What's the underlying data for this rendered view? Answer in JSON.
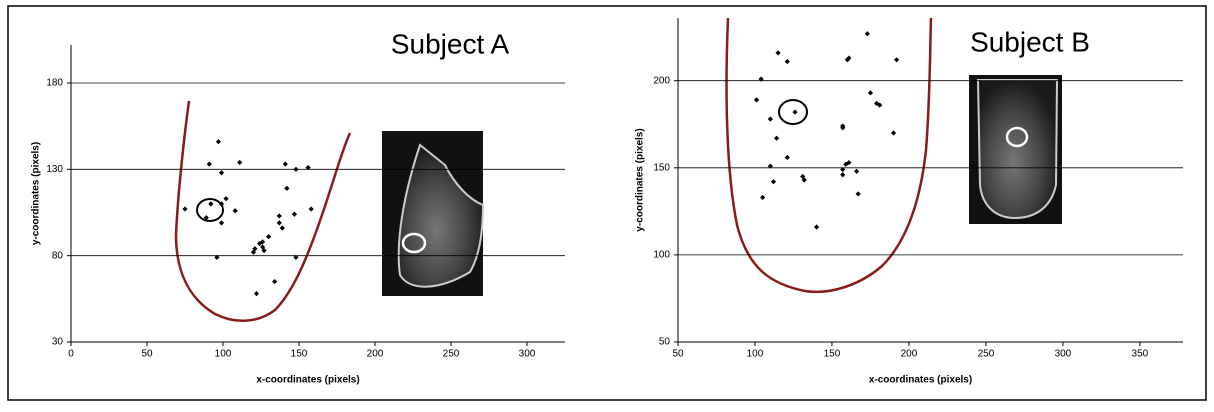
{
  "chart_data": [
    {
      "type": "scatter",
      "title": "Subject A",
      "x_label": "x-coordinates (pixels)",
      "y_label": "y-coordinates (pixels)",
      "x": [
        97,
        91,
        111,
        141,
        156,
        148,
        99,
        142,
        75,
        92,
        99,
        102,
        108,
        158,
        137,
        137,
        147,
        89,
        99,
        139,
        130,
        126,
        124,
        121,
        127,
        126,
        120,
        96,
        148,
        134,
        122
      ],
      "values": [
        146,
        133,
        134,
        133,
        131,
        130,
        128,
        119,
        107,
        110,
        110,
        113,
        106,
        107,
        103,
        99,
        104,
        102,
        99,
        96,
        91,
        88,
        87,
        84,
        83,
        85,
        82,
        79,
        79,
        65,
        58
      ],
      "color": "#000000",
      "xlim": [
        0,
        325
      ],
      "ylim": [
        30,
        202
      ],
      "xticks": [
        0,
        50,
        100,
        150,
        200,
        250,
        300
      ],
      "yticks": [
        30,
        80,
        130,
        180
      ],
      "grid": true
    },
    {
      "type": "scatter",
      "title": "Subject B",
      "x_label": "x-coordinates (pixels)",
      "y_label": "y-coordinates (pixels)",
      "x": [
        173,
        115,
        121,
        160,
        161,
        192,
        104,
        101,
        175,
        179,
        181,
        110,
        126,
        114,
        157,
        157,
        190,
        121,
        110,
        159,
        161,
        157,
        166,
        131,
        132,
        112,
        157,
        167,
        105,
        140
      ],
      "values": [
        227,
        216,
        211,
        212,
        213,
        212,
        201,
        189,
        193,
        187,
        186,
        178,
        182,
        167,
        174,
        173,
        170,
        156,
        151,
        152,
        153,
        149,
        148,
        145,
        143,
        142,
        146,
        135,
        133,
        116
      ],
      "color": "#000000",
      "xlim": [
        50,
        378
      ],
      "ylim": [
        50,
        236
      ],
      "xticks": [
        50,
        100,
        150,
        200,
        250,
        300,
        350
      ],
      "yticks": [
        50,
        100,
        150,
        200
      ],
      "grid": true
    }
  ]
}
